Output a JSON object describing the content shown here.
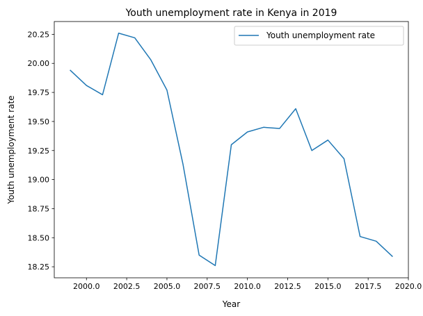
{
  "chart_data": {
    "type": "line",
    "title": "Youth unemployment rate in Kenya in 2019",
    "xlabel": "Year",
    "ylabel": "Youth unemployment rate",
    "xlim": [
      1998.0,
      2020.0
    ],
    "ylim": [
      18.155,
      20.36
    ],
    "x_ticks": [
      2000.0,
      2002.5,
      2005.0,
      2007.5,
      2010.0,
      2012.5,
      2015.0,
      2017.5,
      2020.0
    ],
    "x_tick_labels": [
      "2000.0",
      "2002.5",
      "2005.0",
      "2007.5",
      "2010.0",
      "2012.5",
      "2015.0",
      "2017.5",
      "2020.0"
    ],
    "y_ticks": [
      18.25,
      18.5,
      18.75,
      19.0,
      19.25,
      19.5,
      19.75,
      20.0,
      20.25
    ],
    "y_tick_labels": [
      "18.25",
      "18.50",
      "18.75",
      "19.00",
      "19.25",
      "19.50",
      "19.75",
      "20.00",
      "20.25"
    ],
    "grid": false,
    "legend_position": "top-right",
    "series": [
      {
        "name": "Youth unemployment rate",
        "color": "#1f77b4",
        "x": [
          1999,
          2000,
          2001,
          2002,
          2003,
          2004,
          2005,
          2006,
          2007,
          2008,
          2009,
          2010,
          2011,
          2012,
          2013,
          2014,
          2015,
          2016,
          2017,
          2018,
          2019
        ],
        "y": [
          19.94,
          19.81,
          19.73,
          20.26,
          20.22,
          20.03,
          19.77,
          19.13,
          18.35,
          18.26,
          19.3,
          19.41,
          19.45,
          19.44,
          19.61,
          19.25,
          19.34,
          19.18,
          18.51,
          18.47,
          18.34
        ]
      }
    ]
  }
}
